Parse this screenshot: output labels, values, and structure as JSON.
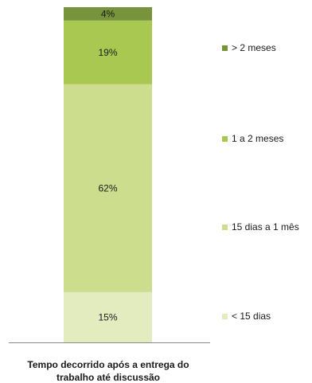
{
  "chart_data": {
    "type": "bar",
    "stacked": true,
    "categories": [
      "Tempo decorrido após a entrega do trabalho até discussão"
    ],
    "category_label_lines": [
      "Tempo decorrido após a entrega do",
      "trabalho até discussão"
    ],
    "series": [
      {
        "name": "< 15 dias",
        "values": [
          15
        ],
        "label": "15%",
        "color": "#e3ecbf"
      },
      {
        "name": "15 dias a 1 mês",
        "values": [
          62
        ],
        "label": "62%",
        "color": "#ccde8e"
      },
      {
        "name": "1 a 2 meses",
        "values": [
          19
        ],
        "label": "19%",
        "color": "#a9c852"
      },
      {
        "name": "> 2 meses",
        "values": [
          4
        ],
        "label": "4%",
        "color": "#77933c"
      }
    ],
    "unit": "%",
    "ylim": [
      0,
      100
    ],
    "grid": false,
    "legend": "right"
  }
}
